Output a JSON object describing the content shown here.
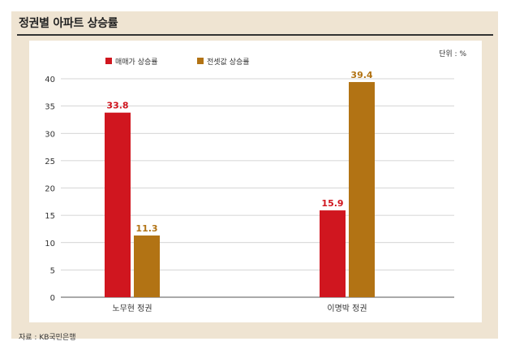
{
  "chart_data": {
    "type": "bar",
    "title": "정권별 아파트 상승률",
    "unit_label": "단위 : %",
    "source": "자료 : KB국민은행",
    "categories": [
      "노무현 정권",
      "이명박 정권"
    ],
    "series": [
      {
        "name": "매매가 상승률",
        "values": [
          33.8,
          15.9
        ],
        "color": "#d0161f"
      },
      {
        "name": "전셋값 상승률",
        "values": [
          11.3,
          39.4
        ],
        "color": "#b27314"
      }
    ],
    "ylim": [
      0,
      40
    ],
    "yticks": [
      0,
      5,
      10,
      15,
      20,
      25,
      30,
      35,
      40
    ],
    "grid": true,
    "legend": "top-left"
  }
}
